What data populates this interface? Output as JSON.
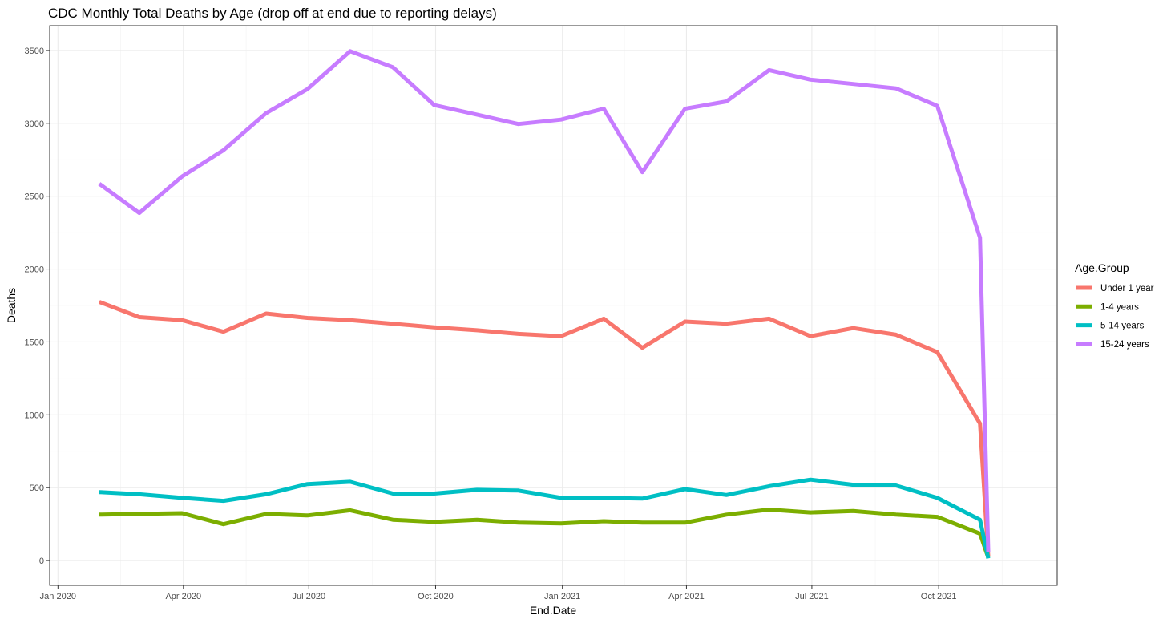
{
  "chart_data": {
    "type": "line",
    "title": "CDC Monthly Total Deaths by Age (drop off at end due to reporting delays)",
    "xlabel": "End.Date",
    "ylabel": "Deaths",
    "ylim": [
      -170,
      3670
    ],
    "xlim": [
      "2019-12-26",
      "2021-12-26"
    ],
    "grid": true,
    "legend_title": "Age.Group",
    "legend_position": "right",
    "x_ticks": [
      {
        "date": "2020-01-01",
        "label": "Jan 2020"
      },
      {
        "date": "2020-04-01",
        "label": "Apr 2020"
      },
      {
        "date": "2020-07-01",
        "label": "Jul 2020"
      },
      {
        "date": "2020-10-01",
        "label": "Oct 2020"
      },
      {
        "date": "2021-01-01",
        "label": "Jan 2021"
      },
      {
        "date": "2021-04-01",
        "label": "Apr 2021"
      },
      {
        "date": "2021-07-01",
        "label": "Jul 2021"
      },
      {
        "date": "2021-10-01",
        "label": "Oct 2021"
      }
    ],
    "y_ticks": [
      0,
      500,
      1000,
      1500,
      2000,
      2500,
      3000,
      3500
    ],
    "x": [
      "2020-01-31",
      "2020-02-29",
      "2020-03-31",
      "2020-04-30",
      "2020-05-31",
      "2020-06-30",
      "2020-07-31",
      "2020-08-31",
      "2020-09-30",
      "2020-10-31",
      "2020-11-30",
      "2020-12-31",
      "2021-01-31",
      "2021-02-28",
      "2021-03-31",
      "2021-04-30",
      "2021-05-31",
      "2021-06-30",
      "2021-07-31",
      "2021-08-31",
      "2021-09-30",
      "2021-10-31",
      "2021-11-06"
    ],
    "series": [
      {
        "name": "Under 1 year",
        "color": "#F8766D",
        "values": [
          1775,
          1670,
          1650,
          1570,
          1695,
          1665,
          1650,
          1625,
          1600,
          1580,
          1555,
          1540,
          1660,
          1460,
          1640,
          1625,
          1660,
          1540,
          1595,
          1550,
          1430,
          940,
          30
        ]
      },
      {
        "name": "1-4 years",
        "color": "#7CAE00",
        "values": [
          315,
          320,
          325,
          250,
          320,
          310,
          345,
          280,
          265,
          280,
          260,
          255,
          270,
          260,
          260,
          315,
          350,
          330,
          340,
          315,
          300,
          185,
          20
        ]
      },
      {
        "name": "5-14 years",
        "color": "#00BFC4",
        "values": [
          470,
          455,
          430,
          410,
          455,
          525,
          540,
          460,
          460,
          485,
          480,
          430,
          430,
          425,
          490,
          450,
          510,
          555,
          520,
          515,
          430,
          280,
          15
        ]
      },
      {
        "name": "15-24 years",
        "color": "#C77CFF",
        "values": [
          2585,
          2385,
          2635,
          2815,
          3070,
          3235,
          3495,
          3385,
          3125,
          3060,
          2995,
          3025,
          3100,
          2665,
          3100,
          3150,
          3365,
          3300,
          3270,
          3240,
          3120,
          2215,
          60
        ]
      }
    ]
  }
}
